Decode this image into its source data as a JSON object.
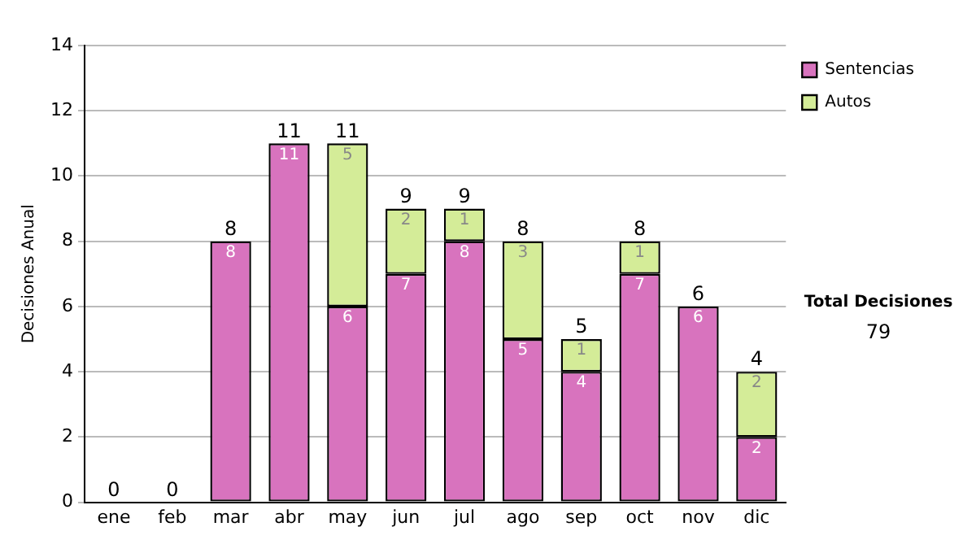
{
  "chart_data": {
    "type": "bar",
    "stacked": true,
    "ylabel": "Decisiones Anual",
    "categories": [
      "ene",
      "feb",
      "mar",
      "abr",
      "may",
      "jun",
      "jul",
      "ago",
      "sep",
      "oct",
      "nov",
      "dic"
    ],
    "series": [
      {
        "name": "Sentencias",
        "color": "#d873be",
        "values": [
          0,
          0,
          8,
          11,
          6,
          7,
          8,
          5,
          4,
          7,
          6,
          2
        ],
        "value_labels": [
          null,
          null,
          "8",
          "11",
          "6",
          "7",
          "8",
          "5",
          "4",
          "7",
          "6",
          "2"
        ]
      },
      {
        "name": "Autos",
        "color": "#d4ec98",
        "values": [
          0,
          0,
          0,
          0,
          5,
          2,
          1,
          3,
          1,
          1,
          0,
          2
        ],
        "value_labels": [
          null,
          null,
          null,
          null,
          "5",
          "2",
          "1",
          "3",
          "1",
          "1",
          null,
          "2"
        ]
      }
    ],
    "totals": [
      "0",
      "0",
      "8",
      "11",
      "11",
      "9",
      "9",
      "8",
      "5",
      "8",
      "6",
      "4"
    ],
    "ylim": [
      0,
      14
    ],
    "yticks": [
      0,
      2,
      4,
      6,
      8,
      10,
      12,
      14
    ],
    "grid": "y",
    "legend": "right",
    "annotations": [
      "Total Decisiones",
      "79"
    ]
  }
}
